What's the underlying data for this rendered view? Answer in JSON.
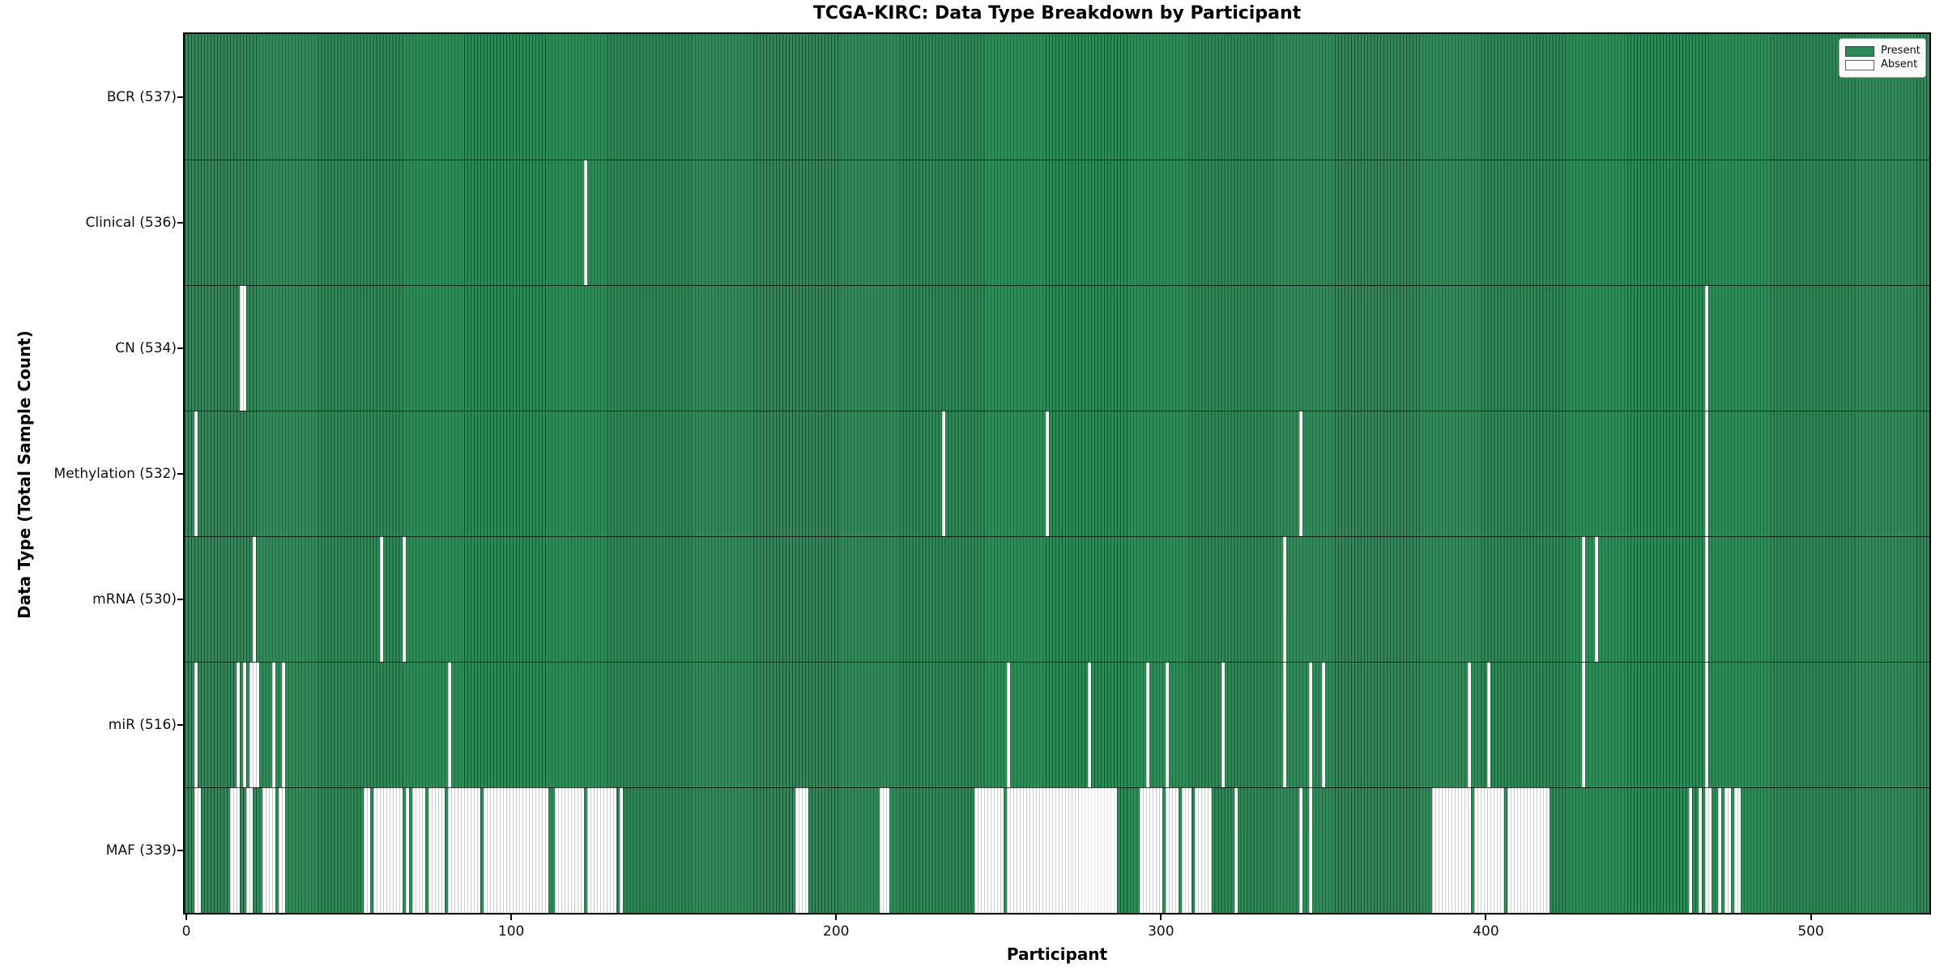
{
  "title": "TCGA-KIRC: Data Type Breakdown by Participant",
  "xlabel": "Participant",
  "ylabel": "Data Type (Total Sample Count)",
  "legend": {
    "present_label": "Present",
    "absent_label": "Absent"
  },
  "colors": {
    "present": "#2e8b57",
    "present_edge": "#1b4f33",
    "absent": "#ffffff",
    "absent_edge": "#c9c9c9",
    "axis": "#000000",
    "legend_bg": "#fafafa"
  },
  "chart_data": {
    "type": "heatmap",
    "title": "TCGA-KIRC: Data Type Breakdown by Participant",
    "xlabel": "Participant",
    "ylabel": "Data Type (Total Sample Count)",
    "legend": [
      "Present",
      "Absent"
    ],
    "legend_position": "upper right",
    "x_ticks": [
      0,
      100,
      200,
      300,
      400,
      500
    ],
    "x_range": [
      0,
      537
    ],
    "n_participants": 537,
    "cell_values": {
      "present": 1,
      "absent": 0
    },
    "rows": [
      {
        "data_type": "BCR",
        "label": "BCR (537)",
        "present_count": 537,
        "absent_ranges": []
      },
      {
        "data_type": "Clinical",
        "label": "Clinical (536)",
        "present_count": 536,
        "absent_ranges": [
          [
            123,
            123
          ]
        ]
      },
      {
        "data_type": "CN",
        "label": "CN (534)",
        "present_count": 534,
        "absent_ranges": [
          [
            17,
            18
          ],
          [
            468,
            468
          ]
        ]
      },
      {
        "data_type": "Methylation",
        "label": "Methylation (532)",
        "present_count": 532,
        "absent_ranges": [
          [
            3,
            3
          ],
          [
            233,
            233
          ],
          [
            265,
            265
          ],
          [
            343,
            343
          ],
          [
            468,
            468
          ]
        ]
      },
      {
        "data_type": "mRNA",
        "label": "mRNA (530)",
        "present_count": 530,
        "absent_ranges": [
          [
            21,
            21
          ],
          [
            60,
            60
          ],
          [
            67,
            67
          ],
          [
            338,
            338
          ],
          [
            430,
            430
          ],
          [
            434,
            434
          ],
          [
            468,
            468
          ]
        ]
      },
      {
        "data_type": "miR",
        "label": "miR (516)",
        "present_count": 516,
        "absent_ranges": [
          [
            3,
            3
          ],
          [
            16,
            16
          ],
          [
            18,
            18
          ],
          [
            20,
            22
          ],
          [
            27,
            27
          ],
          [
            30,
            30
          ],
          [
            81,
            81
          ],
          [
            253,
            253
          ],
          [
            278,
            278
          ],
          [
            296,
            296
          ],
          [
            302,
            302
          ],
          [
            319,
            319
          ],
          [
            338,
            338
          ],
          [
            346,
            346
          ],
          [
            350,
            350
          ],
          [
            395,
            395
          ],
          [
            401,
            401
          ],
          [
            430,
            430
          ],
          [
            468,
            468
          ]
        ]
      },
      {
        "data_type": "MAF",
        "label": "MAF (339)",
        "present_count": 339,
        "absent_ranges": [
          [
            3,
            4
          ],
          [
            14,
            16
          ],
          [
            19,
            20
          ],
          [
            24,
            27
          ],
          [
            29,
            30
          ],
          [
            55,
            56
          ],
          [
            58,
            66
          ],
          [
            68,
            68
          ],
          [
            70,
            73
          ],
          [
            75,
            79
          ],
          [
            81,
            90
          ],
          [
            92,
            111
          ],
          [
            114,
            122
          ],
          [
            124,
            132
          ],
          [
            134,
            134
          ],
          [
            188,
            191
          ],
          [
            214,
            216
          ],
          [
            243,
            251
          ],
          [
            253,
            286
          ],
          [
            294,
            300
          ],
          [
            302,
            305
          ],
          [
            307,
            309
          ],
          [
            311,
            315
          ],
          [
            323,
            323
          ],
          [
            343,
            343
          ],
          [
            346,
            346
          ],
          [
            384,
            395
          ],
          [
            397,
            405
          ],
          [
            407,
            419
          ],
          [
            463,
            463
          ],
          [
            466,
            466
          ],
          [
            468,
            469
          ],
          [
            472,
            472
          ],
          [
            474,
            475
          ],
          [
            477,
            478
          ]
        ]
      }
    ]
  }
}
